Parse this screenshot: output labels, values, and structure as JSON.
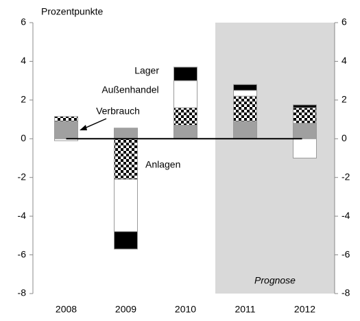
{
  "chart_data": {
    "type": "stacked-bar",
    "y_label": "Prozentpunkte",
    "categories": [
      "2008",
      "2009",
      "2010",
      "2011",
      "2012"
    ],
    "series": [
      {
        "name": "Verbrauch",
        "color": "#a0a0a0",
        "values": [
          0.9,
          0.55,
          0.7,
          0.9,
          0.8
        ]
      },
      {
        "name": "Anlagen",
        "color": "checker",
        "values": [
          0.25,
          -2.1,
          0.9,
          1.3,
          0.8
        ]
      },
      {
        "name": "Außenhandel",
        "color": "#ffffff",
        "values": [
          -0.1,
          -2.7,
          1.4,
          0.3,
          -1.0
        ]
      },
      {
        "name": "Lager",
        "color": "#000000",
        "values": [
          0,
          -0.9,
          0.7,
          0.3,
          0.15
        ]
      }
    ],
    "forecast": {
      "label": "Prognose",
      "from": "2011",
      "color": "#d9d9d9"
    },
    "ylim": [
      -8,
      6
    ],
    "yticks": [
      -8,
      -6,
      -4,
      -2,
      0,
      2,
      4,
      6
    ],
    "y2lim": [
      -8,
      6
    ],
    "y2ticks": [
      -8,
      -6,
      -4,
      -2,
      0,
      2,
      4,
      6
    ]
  }
}
